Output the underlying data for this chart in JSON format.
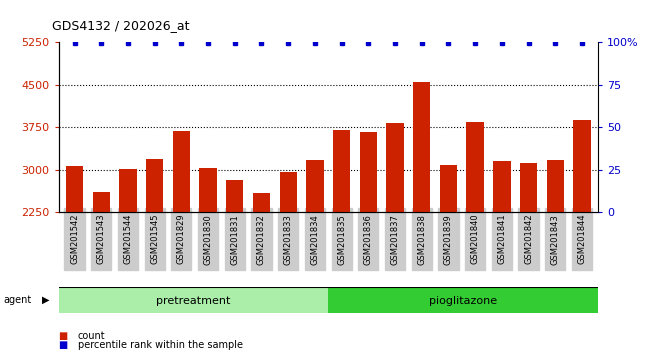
{
  "title": "GDS4132 / 202026_at",
  "samples": [
    "GSM201542",
    "GSM201543",
    "GSM201544",
    "GSM201545",
    "GSM201829",
    "GSM201830",
    "GSM201831",
    "GSM201832",
    "GSM201833",
    "GSM201834",
    "GSM201835",
    "GSM201836",
    "GSM201837",
    "GSM201838",
    "GSM201839",
    "GSM201840",
    "GSM201841",
    "GSM201842",
    "GSM201843",
    "GSM201844"
  ],
  "counts": [
    3070,
    2610,
    3020,
    3200,
    3680,
    3040,
    2830,
    2590,
    2960,
    3180,
    3700,
    3670,
    3820,
    4560,
    3080,
    3840,
    3160,
    3130,
    3180,
    3890
  ],
  "pretreatment_count": 10,
  "pioglitazone_count": 10,
  "ylim_left": [
    2250,
    5250
  ],
  "ylim_right": [
    0,
    100
  ],
  "yticks_left": [
    2250,
    3000,
    3750,
    4500,
    5250
  ],
  "yticks_right": [
    0,
    25,
    50,
    75,
    100
  ],
  "bar_color": "#cc2200",
  "dot_color": "#0000cc",
  "grid_color": "#000000",
  "pretreatment_color": "#aaeeaa",
  "pioglitazone_color": "#33cc33",
  "xticklabel_bg": "#cccccc",
  "background_color": "#ffffff",
  "bar_bottom": 2250,
  "dotted_gridlines": [
    3000,
    3750,
    4500
  ]
}
